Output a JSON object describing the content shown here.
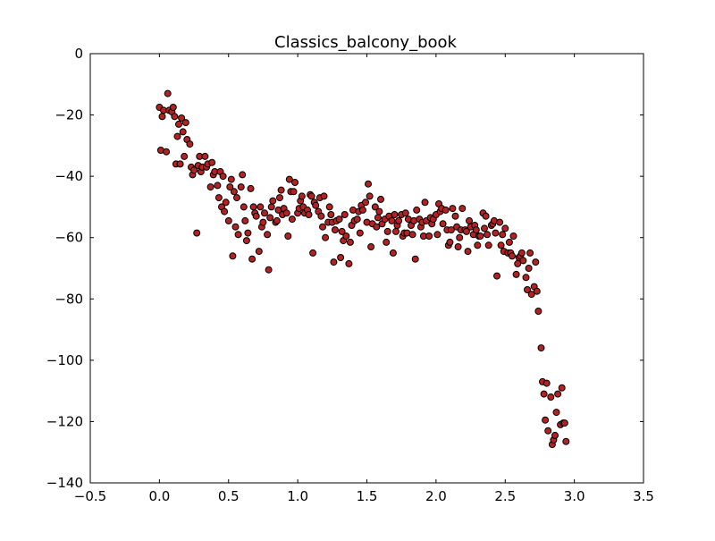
{
  "chart_data": {
    "type": "scatter",
    "title": "Classics_balcony_book",
    "xlabel": "",
    "ylabel": "",
    "xlim": [
      -0.5,
      3.5
    ],
    "ylim": [
      -140,
      0
    ],
    "xticks": [
      -0.5,
      0.0,
      0.5,
      1.0,
      1.5,
      2.0,
      2.5,
      3.0,
      3.5
    ],
    "xtick_labels": [
      "−0.5",
      "0.0",
      "0.5",
      "1.0",
      "1.5",
      "2.0",
      "2.5",
      "3.0",
      "3.5"
    ],
    "yticks": [
      0,
      -20,
      -40,
      -60,
      -80,
      -100,
      -120,
      -140
    ],
    "ytick_labels": [
      "0",
      "−20",
      "−40",
      "−60",
      "−80",
      "−100",
      "−120",
      "−140"
    ],
    "grid": false,
    "marker_color": "#b22222",
    "marker_edge_color": "#000000",
    "series": [
      {
        "points": [
          [
            0.0,
            -17.5
          ],
          [
            0.01,
            -31.5
          ],
          [
            0.02,
            -20.5
          ],
          [
            0.03,
            -18.5
          ],
          [
            0.05,
            -32.0
          ],
          [
            0.06,
            -13.0
          ],
          [
            0.07,
            -18.5
          ],
          [
            0.09,
            -19.0
          ],
          [
            0.1,
            -17.5
          ],
          [
            0.11,
            -20.5
          ],
          [
            0.12,
            -36.0
          ],
          [
            0.13,
            -27.0
          ],
          [
            0.14,
            -23.0
          ],
          [
            0.15,
            -36.0
          ],
          [
            0.16,
            -21.0
          ],
          [
            0.17,
            -25.5
          ],
          [
            0.18,
            -33.5
          ],
          [
            0.19,
            -22.5
          ],
          [
            0.2,
            -28.0
          ],
          [
            0.22,
            -29.5
          ],
          [
            0.23,
            -37.0
          ],
          [
            0.24,
            -39.5
          ],
          [
            0.25,
            -38.0
          ],
          [
            0.27,
            -58.5
          ],
          [
            0.28,
            -36.5
          ],
          [
            0.29,
            -33.5
          ],
          [
            0.3,
            -38.5
          ],
          [
            0.31,
            -37.0
          ],
          [
            0.33,
            -33.5
          ],
          [
            0.34,
            -37.0
          ],
          [
            0.35,
            -36.0
          ],
          [
            0.37,
            -43.5
          ],
          [
            0.38,
            -35.5
          ],
          [
            0.39,
            -39.5
          ],
          [
            0.4,
            -38.5
          ],
          [
            0.42,
            -43.0
          ],
          [
            0.43,
            -47.0
          ],
          [
            0.44,
            -38.5
          ],
          [
            0.45,
            -50.0
          ],
          [
            0.46,
            -40.0
          ],
          [
            0.47,
            -51.5
          ],
          [
            0.48,
            -48.5
          ],
          [
            0.5,
            -54.5
          ],
          [
            0.51,
            -43.5
          ],
          [
            0.52,
            -41.0
          ],
          [
            0.53,
            -66.0
          ],
          [
            0.54,
            -45.0
          ],
          [
            0.55,
            -56.5
          ],
          [
            0.56,
            -47.0
          ],
          [
            0.57,
            -59.0
          ],
          [
            0.59,
            -43.5
          ],
          [
            0.6,
            -39.5
          ],
          [
            0.61,
            -50.0
          ],
          [
            0.62,
            -54.5
          ],
          [
            0.63,
            -61.0
          ],
          [
            0.64,
            -58.5
          ],
          [
            0.66,
            -44.0
          ],
          [
            0.67,
            -67.0
          ],
          [
            0.68,
            -50.0
          ],
          [
            0.69,
            -52.0
          ],
          [
            0.7,
            -53.0
          ],
          [
            0.72,
            -64.5
          ],
          [
            0.73,
            -50.0
          ],
          [
            0.74,
            -56.5
          ],
          [
            0.75,
            -55.0
          ],
          [
            0.76,
            -52.0
          ],
          [
            0.78,
            -59.0
          ],
          [
            0.79,
            -70.5
          ],
          [
            0.8,
            -53.5
          ],
          [
            0.81,
            -50.0
          ],
          [
            0.82,
            -48.0
          ],
          [
            0.84,
            -55.0
          ],
          [
            0.85,
            -54.5
          ],
          [
            0.86,
            -51.0
          ],
          [
            0.87,
            -47.0
          ],
          [
            0.88,
            -44.5
          ],
          [
            0.89,
            -52.5
          ],
          [
            0.9,
            -50.5
          ],
          [
            0.92,
            -52.0
          ],
          [
            0.93,
            -59.5
          ],
          [
            0.94,
            -41.0
          ],
          [
            0.95,
            -45.0
          ],
          [
            0.96,
            -54.0
          ],
          [
            0.97,
            -45.0
          ],
          [
            0.98,
            -42.0
          ],
          [
            1.0,
            -52.0
          ],
          [
            1.01,
            -50.5
          ],
          [
            1.02,
            -48.0
          ],
          [
            1.03,
            -46.5
          ],
          [
            1.04,
            -50.0
          ],
          [
            1.05,
            -52.0
          ],
          [
            1.07,
            -51.0
          ],
          [
            1.08,
            -52.5
          ],
          [
            1.09,
            -46.0
          ],
          [
            1.1,
            -46.5
          ],
          [
            1.11,
            -65.0
          ],
          [
            1.12,
            -48.5
          ],
          [
            1.13,
            -49.5
          ],
          [
            1.15,
            -51.5
          ],
          [
            1.16,
            -47.0
          ],
          [
            1.17,
            -53.0
          ],
          [
            1.18,
            -56.5
          ],
          [
            1.19,
            -46.5
          ],
          [
            1.2,
            -60.0
          ],
          [
            1.22,
            -55.0
          ],
          [
            1.23,
            -50.0
          ],
          [
            1.24,
            -52.5
          ],
          [
            1.25,
            -55.0
          ],
          [
            1.26,
            -68.0
          ],
          [
            1.27,
            -57.5
          ],
          [
            1.28,
            -54.5
          ],
          [
            1.3,
            -54.0
          ],
          [
            1.31,
            -66.5
          ],
          [
            1.32,
            -58.0
          ],
          [
            1.33,
            -61.0
          ],
          [
            1.34,
            -52.5
          ],
          [
            1.35,
            -59.5
          ],
          [
            1.37,
            -68.5
          ],
          [
            1.38,
            -61.5
          ],
          [
            1.39,
            -56.0
          ],
          [
            1.4,
            -51.0
          ],
          [
            1.41,
            -54.5
          ],
          [
            1.43,
            -54.0
          ],
          [
            1.44,
            -51.5
          ],
          [
            1.45,
            -58.5
          ],
          [
            1.46,
            -49.5
          ],
          [
            1.47,
            -51.0
          ],
          [
            1.49,
            -48.5
          ],
          [
            1.5,
            -55.0
          ],
          [
            1.51,
            -42.5
          ],
          [
            1.52,
            -46.5
          ],
          [
            1.53,
            -63.0
          ],
          [
            1.54,
            -55.5
          ],
          [
            1.56,
            -50.0
          ],
          [
            1.57,
            -56.5
          ],
          [
            1.58,
            -53.5
          ],
          [
            1.59,
            -51.5
          ],
          [
            1.6,
            -47.5
          ],
          [
            1.61,
            -55.5
          ],
          [
            1.63,
            -54.0
          ],
          [
            1.64,
            -61.5
          ],
          [
            1.65,
            -58.0
          ],
          [
            1.66,
            -53.0
          ],
          [
            1.68,
            -54.5
          ],
          [
            1.69,
            -65.0
          ],
          [
            1.7,
            -52.5
          ],
          [
            1.71,
            -58.0
          ],
          [
            1.72,
            -56.0
          ],
          [
            1.73,
            -54.5
          ],
          [
            1.75,
            -52.5
          ],
          [
            1.76,
            -59.5
          ],
          [
            1.77,
            -58.5
          ],
          [
            1.78,
            -52.0
          ],
          [
            1.79,
            -58.5
          ],
          [
            1.8,
            -54.0
          ],
          [
            1.82,
            -56.0
          ],
          [
            1.83,
            -59.0
          ],
          [
            1.84,
            -54.5
          ],
          [
            1.85,
            -67.0
          ],
          [
            1.86,
            -51.0
          ],
          [
            1.88,
            -54.0
          ],
          [
            1.89,
            -56.5
          ],
          [
            1.9,
            -55.0
          ],
          [
            1.91,
            -59.5
          ],
          [
            1.92,
            -48.5
          ],
          [
            1.93,
            -54.5
          ],
          [
            1.95,
            -59.5
          ],
          [
            1.96,
            -53.5
          ],
          [
            1.97,
            -55.5
          ],
          [
            1.98,
            -54.0
          ],
          [
            2.0,
            -52.5
          ],
          [
            2.01,
            -59.0
          ],
          [
            2.02,
            -49.0
          ],
          [
            2.03,
            -51.5
          ],
          [
            2.04,
            -50.5
          ],
          [
            2.05,
            -55.5
          ],
          [
            2.07,
            -51.0
          ],
          [
            2.08,
            -57.5
          ],
          [
            2.09,
            -62.5
          ],
          [
            2.1,
            -61.5
          ],
          [
            2.11,
            -57.5
          ],
          [
            2.12,
            -50.5
          ],
          [
            2.14,
            -53.0
          ],
          [
            2.15,
            -56.5
          ],
          [
            2.16,
            -63.0
          ],
          [
            2.17,
            -60.0
          ],
          [
            2.18,
            -57.5
          ],
          [
            2.19,
            -50.5
          ],
          [
            2.21,
            -57.5
          ],
          [
            2.22,
            -58.0
          ],
          [
            2.23,
            -64.5
          ],
          [
            2.24,
            -54.5
          ],
          [
            2.25,
            -56.5
          ],
          [
            2.27,
            -59.0
          ],
          [
            2.28,
            -56.0
          ],
          [
            2.29,
            -57.5
          ],
          [
            2.3,
            -62.5
          ],
          [
            2.31,
            -59.5
          ],
          [
            2.32,
            -59.5
          ],
          [
            2.34,
            -52.0
          ],
          [
            2.35,
            -57.0
          ],
          [
            2.36,
            -53.0
          ],
          [
            2.37,
            -59.0
          ],
          [
            2.38,
            -62.5
          ],
          [
            2.4,
            -56.0
          ],
          [
            2.41,
            -55.5
          ],
          [
            2.42,
            -54.5
          ],
          [
            2.43,
            -58.5
          ],
          [
            2.44,
            -72.5
          ],
          [
            2.46,
            -55.0
          ],
          [
            2.47,
            -62.5
          ],
          [
            2.48,
            -59.0
          ],
          [
            2.49,
            -64.5
          ],
          [
            2.5,
            -57.0
          ],
          [
            2.52,
            -65.0
          ],
          [
            2.53,
            -61.5
          ],
          [
            2.54,
            -65.0
          ],
          [
            2.55,
            -66.0
          ],
          [
            2.56,
            -59.5
          ],
          [
            2.58,
            -72.0
          ],
          [
            2.59,
            -68.5
          ],
          [
            2.6,
            -66.5
          ],
          [
            2.61,
            -66.0
          ],
          [
            2.62,
            -65.0
          ],
          [
            2.63,
            -67.5
          ],
          [
            2.65,
            -73.0
          ],
          [
            2.66,
            -77.0
          ],
          [
            2.67,
            -70.0
          ],
          [
            2.68,
            -65.0
          ],
          [
            2.69,
            -78.5
          ],
          [
            2.71,
            -76.0
          ],
          [
            2.72,
            -68.0
          ],
          [
            2.73,
            -77.5
          ],
          [
            2.74,
            -84.0
          ],
          [
            2.76,
            -96.0
          ],
          [
            2.77,
            -107.0
          ],
          [
            2.78,
            -111.0
          ],
          [
            2.79,
            -119.5
          ],
          [
            2.8,
            -107.5
          ],
          [
            2.81,
            -123.0
          ],
          [
            2.83,
            -112.0
          ],
          [
            2.84,
            -127.5
          ],
          [
            2.85,
            -126.0
          ],
          [
            2.86,
            -124.5
          ],
          [
            2.87,
            -117.0
          ],
          [
            2.88,
            -111.0
          ],
          [
            2.9,
            -121.0
          ],
          [
            2.91,
            -109.0
          ],
          [
            2.92,
            -120.5
          ],
          [
            2.93,
            -120.5
          ],
          [
            2.94,
            -126.5
          ]
        ]
      }
    ]
  }
}
